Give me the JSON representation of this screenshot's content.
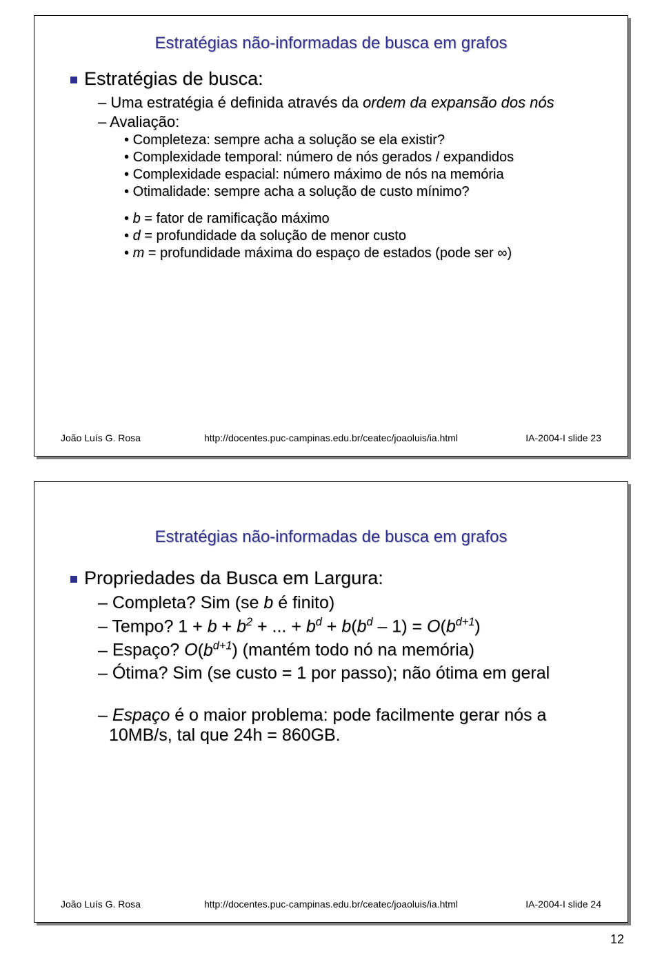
{
  "page_number": "12",
  "slide1": {
    "title": "Estratégias não-informadas de busca em grafos",
    "h1": "Estratégias de busca:",
    "l2a_pre": "Uma estratégia é definida através da ",
    "l2a_it1": "ordem da expansão dos nós",
    "l2b": "Avaliação:",
    "l3a": "Completeza: sempre acha a solução se ela existir?",
    "l3b": "Complexidade temporal:  número de nós gerados / expandidos",
    "l3c": "Complexidade espacial: número máximo de nós na memória",
    "l3d": "Otimalidade: sempre acha a solução de custo mínimo?",
    "l3e_it": "b",
    "l3e_rest": " = fator de ramificação máximo",
    "l3f_it": "d",
    "l3f_rest": " = profundidade da solução de menor custo",
    "l3g_it": "m",
    "l3g_rest": " = profundidade máxima do espaço de estados (pode ser ∞)",
    "footer_left": "João Luís G. Rosa",
    "footer_mid": "http://docentes.puc-campinas.edu.br/ceatec/joaoluis/ia.html",
    "footer_right": "IA-2004-I  slide 23"
  },
  "slide2": {
    "title": "Estratégias não-informadas de busca em grafos",
    "h1": "Propriedades da Busca em Largura:",
    "l1_pre": "Completa? Sim (se ",
    "l1_it": "b",
    "l1_post": " é finito)",
    "l2": "Tempo? 1 + b + b² + ... + bᵈ + b(bᵈ – 1) = O(bᵈ⁺¹)",
    "l3_pre": "Espaço? ",
    "l3_it": "O",
    "l3_par": "(b",
    "l3_sup": "d+1",
    "l3_post": ") (mantém todo nó na memória)",
    "l4": "Ótima? Sim (se custo = 1 por passo); não ótima em geral",
    "l5_it": "Espaço",
    "l5_rest": " é o maior problema: pode facilmente gerar nós a 10MB/s, tal que 24h = 860GB.",
    "footer_left": "João Luís G. Rosa",
    "footer_mid": "http://docentes.puc-campinas.edu.br/ceatec/joaoluis/ia.html",
    "footer_right": "IA-2004-I  slide 24"
  }
}
